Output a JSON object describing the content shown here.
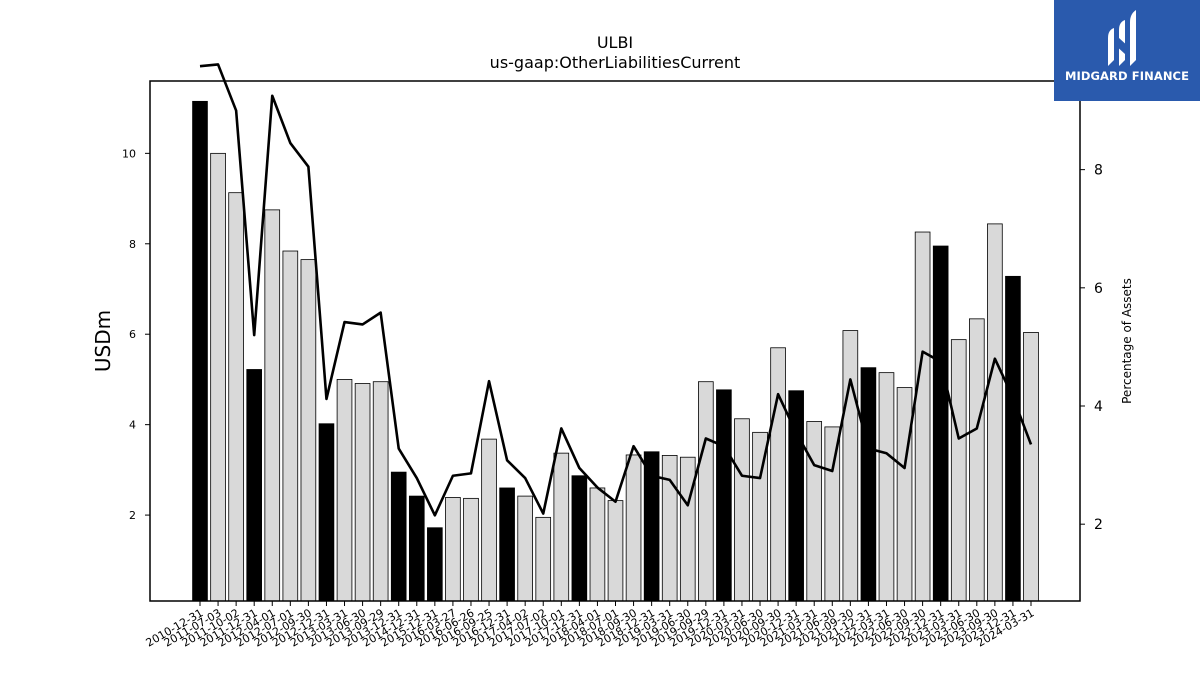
{
  "brand": {
    "name": "MIDGARD FINANCE",
    "logo_icon": "midgard-m-logo-icon",
    "background": "#2a5aad"
  },
  "chart_data": {
    "type": "bar",
    "title": "ULBI",
    "subtitle": "us-gaap:OtherLiabilitiesCurrent",
    "ylabel": "USDm",
    "y2label": "Percentage of Assets",
    "ylim": [
      0.1,
      11.6
    ],
    "y2lim": [
      0.7,
      9.5
    ],
    "yticks": [
      2,
      4,
      6,
      8,
      10
    ],
    "y2ticks": [
      2,
      4,
      6,
      8
    ],
    "colors": {
      "annual": "#000000",
      "quarterly": "#d9d9d9",
      "line": "#000000"
    },
    "categories": [
      "2010-12-31",
      "2011-07-03",
      "2011-10-02",
      "2011-12-31",
      "2012-04-01",
      "2012-07-01",
      "2012-09-30",
      "2012-12-31",
      "2013-03-31",
      "2013-06-30",
      "2013-09-29",
      "2013-12-31",
      "2014-12-31",
      "2015-12-31",
      "2016-03-27",
      "2016-06-26",
      "2016-09-25",
      "2016-12-31",
      "2017-04-02",
      "2017-07-02",
      "2017-10-01",
      "2017-12-31",
      "2018-04-01",
      "2018-07-01",
      "2018-09-30",
      "2018-12-31",
      "2019-03-31",
      "2019-06-30",
      "2019-09-29",
      "2019-12-31",
      "2020-03-31",
      "2020-06-30",
      "2020-09-30",
      "2020-12-31",
      "2021-03-31",
      "2021-06-30",
      "2021-09-30",
      "2021-12-31",
      "2022-03-31",
      "2022-06-30",
      "2022-09-30",
      "2022-12-31",
      "2023-03-31",
      "2023-06-30",
      "2023-09-30",
      "2023-12-31",
      "2024-03-31"
    ],
    "series": [
      {
        "type": "bar",
        "values": [
          11.15,
          10.0,
          9.13,
          5.22,
          8.75,
          7.84,
          7.65,
          4.02,
          5.0,
          4.91,
          4.95,
          2.95,
          2.42,
          1.72,
          2.39,
          2.37,
          3.68,
          2.6,
          2.42,
          1.95,
          3.37,
          2.87,
          2.6,
          2.32,
          3.33,
          3.4,
          3.32,
          3.28,
          4.95,
          4.77,
          4.13,
          3.83,
          5.7,
          4.75,
          4.07,
          3.95,
          6.08,
          5.26,
          5.15,
          4.82,
          8.26,
          7.95,
          5.88,
          6.34,
          8.44,
          7.28,
          6.04
        ],
        "annual": [
          true,
          false,
          false,
          true,
          false,
          false,
          false,
          true,
          false,
          false,
          false,
          true,
          true,
          true,
          false,
          false,
          false,
          true,
          false,
          false,
          false,
          true,
          false,
          false,
          false,
          true,
          false,
          false,
          false,
          true,
          false,
          false,
          false,
          true,
          false,
          false,
          false,
          true,
          false,
          false,
          false,
          true,
          false,
          false,
          false,
          true,
          false
        ]
      },
      {
        "type": "line",
        "axis": "right",
        "values": [
          9.75,
          9.78,
          9.0,
          5.2,
          9.25,
          8.45,
          8.05,
          4.12,
          5.42,
          5.38,
          5.58,
          3.28,
          2.78,
          2.15,
          2.82,
          2.86,
          4.42,
          3.08,
          2.78,
          2.18,
          3.62,
          2.95,
          2.62,
          2.38,
          3.32,
          2.82,
          2.75,
          2.32,
          3.45,
          3.32,
          2.82,
          2.78,
          4.2,
          3.55,
          3.0,
          2.9,
          4.45,
          3.28,
          3.2,
          2.95,
          4.92,
          4.75,
          3.45,
          3.62,
          4.8,
          4.15,
          3.35
        ]
      }
    ]
  }
}
